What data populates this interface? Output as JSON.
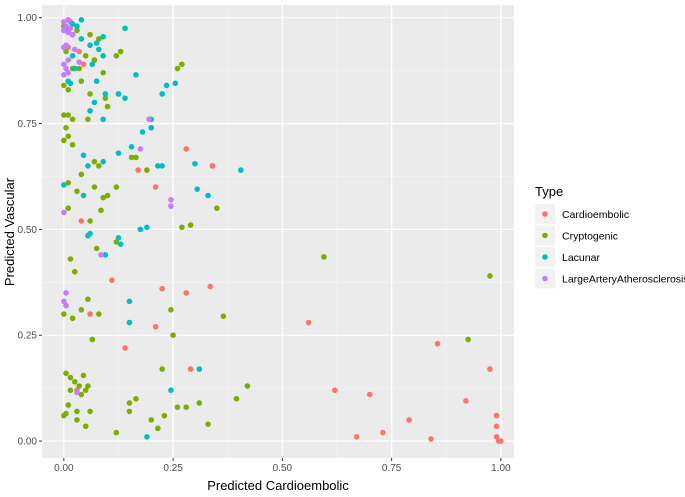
{
  "chart_data": {
    "type": "scatter",
    "xlabel": "Predicted Cardioembolic",
    "ylabel": "Predicted Vascular",
    "xlim": [
      -0.05,
      1.03
    ],
    "ylim": [
      -0.04,
      1.03
    ],
    "x_ticks": [
      0.0,
      0.25,
      0.5,
      0.75,
      1.0
    ],
    "x_tick_labels": [
      "0.00",
      "0.25",
      "0.50",
      "0.75",
      "1.00"
    ],
    "y_ticks": [
      0.0,
      0.25,
      0.5,
      0.75,
      1.0
    ],
    "y_tick_labels": [
      "0.00",
      "0.25",
      "0.50",
      "0.75",
      "1.00"
    ],
    "grid": true,
    "legend": {
      "title": "Type",
      "position": "right"
    },
    "panel_color": "#ebebeb",
    "series": [
      {
        "name": "Cardioembolic",
        "color": "#F8766D",
        "points": [
          [
            0.04,
            0.95
          ],
          [
            0.01,
            0.93
          ],
          [
            0.035,
            0.92
          ],
          [
            0.045,
            0.89
          ],
          [
            0.2,
            0.74
          ],
          [
            0.28,
            0.69
          ],
          [
            0.34,
            0.65
          ],
          [
            0.17,
            0.64
          ],
          [
            0.21,
            0.6
          ],
          [
            0.04,
            0.52
          ],
          [
            0.11,
            0.38
          ],
          [
            0.225,
            0.36
          ],
          [
            0.28,
            0.35
          ],
          [
            0.335,
            0.365
          ],
          [
            0.06,
            0.3
          ],
          [
            0.21,
            0.27
          ],
          [
            0.14,
            0.22
          ],
          [
            0.29,
            0.17
          ],
          [
            0.56,
            0.28
          ],
          [
            0.62,
            0.12
          ],
          [
            0.7,
            0.11
          ],
          [
            0.67,
            0.01
          ],
          [
            0.73,
            0.02
          ],
          [
            0.79,
            0.05
          ],
          [
            0.84,
            0.005
          ],
          [
            0.855,
            0.23
          ],
          [
            0.92,
            0.095
          ],
          [
            0.975,
            0.17
          ],
          [
            0.99,
            0.06
          ],
          [
            0.99,
            0.035
          ],
          [
            0.99,
            0.01
          ],
          [
            0.995,
            0.0
          ],
          [
            1.0,
            0.0
          ],
          [
            0.03,
            0.12
          ],
          [
            0.015,
            0.99
          ]
        ]
      },
      {
        "name": "Cryptogenic",
        "color": "#7CAE00",
        "points": [
          [
            0.0,
            0.98
          ],
          [
            0.03,
            0.97
          ],
          [
            0.06,
            0.96
          ],
          [
            0.08,
            0.95
          ],
          [
            0.005,
            0.92
          ],
          [
            0.12,
            0.91
          ],
          [
            0.13,
            0.92
          ],
          [
            0.05,
            0.91
          ],
          [
            0.07,
            0.9
          ],
          [
            0.02,
            0.88
          ],
          [
            0.09,
            0.87
          ],
          [
            0.04,
            0.85
          ],
          [
            0.26,
            0.88
          ],
          [
            0.27,
            0.89
          ],
          [
            0.0,
            0.84
          ],
          [
            0.01,
            0.83
          ],
          [
            0.06,
            0.82
          ],
          [
            0.095,
            0.81
          ],
          [
            0.1,
            0.79
          ],
          [
            0.125,
            0.82
          ],
          [
            0.0,
            0.77
          ],
          [
            0.01,
            0.77
          ],
          [
            0.02,
            0.76
          ],
          [
            0.055,
            0.76
          ],
          [
            0.005,
            0.74
          ],
          [
            0.01,
            0.72
          ],
          [
            0.0,
            0.71
          ],
          [
            0.02,
            0.7
          ],
          [
            0.07,
            0.66
          ],
          [
            0.08,
            0.65
          ],
          [
            0.155,
            0.67
          ],
          [
            0.165,
            0.67
          ],
          [
            0.19,
            0.64
          ],
          [
            0.04,
            0.63
          ],
          [
            0.01,
            0.61
          ],
          [
            0.07,
            0.6
          ],
          [
            0.03,
            0.59
          ],
          [
            0.1,
            0.58
          ],
          [
            0.12,
            0.6
          ],
          [
            0.09,
            0.575
          ],
          [
            0.085,
            0.545
          ],
          [
            0.06,
            0.52
          ],
          [
            0.35,
            0.55
          ],
          [
            0.01,
            0.55
          ],
          [
            0.29,
            0.51
          ],
          [
            0.27,
            0.505
          ],
          [
            0.12,
            0.47
          ],
          [
            0.075,
            0.455
          ],
          [
            0.015,
            0.43
          ],
          [
            0.025,
            0.4
          ],
          [
            0.595,
            0.435
          ],
          [
            0.975,
            0.39
          ],
          [
            0.055,
            0.335
          ],
          [
            0.04,
            0.31
          ],
          [
            0.02,
            0.29
          ],
          [
            0.0,
            0.3
          ],
          [
            0.08,
            0.3
          ],
          [
            0.365,
            0.295
          ],
          [
            0.245,
            0.31
          ],
          [
            0.25,
            0.25
          ],
          [
            0.065,
            0.24
          ],
          [
            0.005,
            0.16
          ],
          [
            0.015,
            0.15
          ],
          [
            0.025,
            0.14
          ],
          [
            0.045,
            0.155
          ],
          [
            0.035,
            0.13
          ],
          [
            0.015,
            0.12
          ],
          [
            0.04,
            0.11
          ],
          [
            0.005,
            0.065
          ],
          [
            0.01,
            0.085
          ],
          [
            0.03,
            0.07
          ],
          [
            0.06,
            0.07
          ],
          [
            0.05,
            0.12
          ],
          [
            0.055,
            0.13
          ],
          [
            0.03,
            0.05
          ],
          [
            0.05,
            0.035
          ],
          [
            0.12,
            0.02
          ],
          [
            0.15,
            0.07
          ],
          [
            0.165,
            0.1
          ],
          [
            0.15,
            0.09
          ],
          [
            0.225,
            0.17
          ],
          [
            0.26,
            0.08
          ],
          [
            0.23,
            0.06
          ],
          [
            0.28,
            0.08
          ],
          [
            0.31,
            0.09
          ],
          [
            0.2,
            0.05
          ],
          [
            0.215,
            0.03
          ],
          [
            0.33,
            0.04
          ],
          [
            0.42,
            0.13
          ],
          [
            0.395,
            0.1
          ],
          [
            0.925,
            0.24
          ],
          [
            0.0,
            0.06
          ],
          [
            0.035,
            0.88
          ],
          [
            0.07,
            0.9
          ]
        ]
      },
      {
        "name": "Lacunar",
        "color": "#00BFC4",
        "points": [
          [
            0.03,
            0.98
          ],
          [
            0.04,
            0.995
          ],
          [
            0.14,
            0.975
          ],
          [
            0.0,
            0.97
          ],
          [
            0.01,
            0.97
          ],
          [
            0.02,
            0.96
          ],
          [
            0.09,
            0.955
          ],
          [
            0.04,
            0.95
          ],
          [
            0.075,
            0.94
          ],
          [
            0.06,
            0.935
          ],
          [
            0.08,
            0.925
          ],
          [
            0.02,
            0.91
          ],
          [
            0.09,
            0.91
          ],
          [
            0.065,
            0.89
          ],
          [
            0.025,
            0.88
          ],
          [
            0.165,
            0.865
          ],
          [
            0.01,
            0.85
          ],
          [
            0.015,
            0.845
          ],
          [
            0.075,
            0.85
          ],
          [
            0.125,
            0.82
          ],
          [
            0.235,
            0.84
          ],
          [
            0.255,
            0.845
          ],
          [
            0.225,
            0.82
          ],
          [
            0.095,
            0.82
          ],
          [
            0.14,
            0.81
          ],
          [
            0.07,
            0.8
          ],
          [
            0.06,
            0.78
          ],
          [
            0.09,
            0.76
          ],
          [
            0.2,
            0.76
          ],
          [
            0.18,
            0.73
          ],
          [
            0.2,
            0.74
          ],
          [
            0.155,
            0.695
          ],
          [
            0.125,
            0.68
          ],
          [
            0.215,
            0.65
          ],
          [
            0.225,
            0.65
          ],
          [
            0.045,
            0.675
          ],
          [
            0.09,
            0.66
          ],
          [
            0.055,
            0.65
          ],
          [
            0.3,
            0.655
          ],
          [
            0.405,
            0.64
          ],
          [
            0.305,
            0.595
          ],
          [
            0.33,
            0.58
          ],
          [
            0.0,
            0.605
          ],
          [
            0.045,
            0.58
          ],
          [
            0.175,
            0.5
          ],
          [
            0.19,
            0.505
          ],
          [
            0.125,
            0.48
          ],
          [
            0.13,
            0.465
          ],
          [
            0.055,
            0.485
          ],
          [
            0.06,
            0.49
          ],
          [
            0.095,
            0.44
          ],
          [
            0.15,
            0.33
          ],
          [
            0.15,
            0.28
          ],
          [
            0.31,
            0.17
          ],
          [
            0.245,
            0.12
          ],
          [
            0.19,
            0.01
          ],
          [
            0.02,
            0.985
          ]
        ]
      },
      {
        "name": "LargeArteryAtherosclerosis",
        "color": "#C77CFF",
        "points": [
          [
            0.0,
            0.99
          ],
          [
            0.005,
            0.98
          ],
          [
            0.0,
            0.97
          ],
          [
            0.01,
            0.965
          ],
          [
            0.02,
            0.96
          ],
          [
            0.005,
            0.935
          ],
          [
            0.0,
            0.93
          ],
          [
            0.025,
            0.925
          ],
          [
            0.01,
            0.9
          ],
          [
            0.035,
            0.895
          ],
          [
            0.0,
            0.89
          ],
          [
            0.005,
            0.88
          ],
          [
            0.01,
            0.87
          ],
          [
            0.0,
            0.865
          ],
          [
            0.195,
            0.76
          ],
          [
            0.175,
            0.69
          ],
          [
            0.245,
            0.57
          ],
          [
            0.245,
            0.555
          ],
          [
            0.0,
            0.54
          ],
          [
            0.005,
            0.35
          ],
          [
            0.0,
            0.33
          ],
          [
            0.005,
            0.32
          ],
          [
            0.085,
            0.44
          ],
          [
            0.03,
            0.115
          ],
          [
            0.01,
            0.995
          ],
          [
            0.015,
            0.975
          ]
        ]
      }
    ]
  }
}
